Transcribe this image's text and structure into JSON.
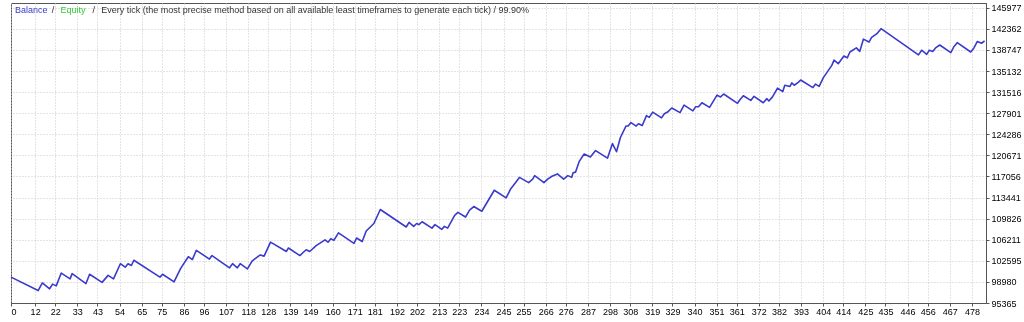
{
  "chart_data": {
    "type": "line",
    "title": "Every tick (the most precise method based on all available least timeframes to generate each tick) / 99.90%",
    "legend": "top left",
    "annotations": [
      "/",
      "/"
    ],
    "grid": true,
    "line_style": "solid",
    "xlim": [
      0,
      485
    ],
    "ylim": [
      95365,
      146800
    ],
    "xticks": [
      0,
      12,
      22,
      33,
      43,
      54,
      65,
      75,
      86,
      96,
      107,
      118,
      128,
      139,
      149,
      160,
      171,
      181,
      192,
      202,
      213,
      223,
      234,
      245,
      255,
      266,
      276,
      287,
      298,
      308,
      319,
      329,
      340,
      351,
      361,
      372,
      382,
      393,
      404,
      414,
      425,
      435,
      446,
      456,
      467,
      478
    ],
    "yticks": [
      95365,
      98980,
      102595,
      106211,
      109826,
      113441,
      117056,
      120671,
      124286,
      127901,
      131516,
      135132,
      138747,
      142362,
      145977
    ],
    "x": [
      0,
      13.5,
      15.6,
      19.2,
      20.7,
      22.5,
      25,
      29.4,
      30.4,
      37.3,
      39.1,
      45.3,
      48.3,
      51,
      54.4,
      56.8,
      58.2,
      59.9,
      61.1,
      74.1,
      75.4,
      81.1,
      84.4,
      88.2,
      90.2,
      92.2,
      98.7,
      100,
      108.7,
      110.2,
      112.6,
      114,
      117.6,
      120,
      124,
      125.9,
      129.1,
      137,
      138,
      143.7,
      146.8,
      148.6,
      151.8,
      156.2,
      157.7,
      159.1,
      160.6,
      162.9,
      170.6,
      171.9,
      174.7,
      176.7,
      180.5,
      183.7,
      196.6,
      198,
      200.3,
      201.8,
      202.9,
      204.5,
      209.4,
      210.9,
      214.3,
      215.6,
      217.2,
      220.7,
      222.3,
      226.1,
      228.1,
      230.2,
      234.2,
      240.4,
      246.3,
      248.5,
      249.6,
      252.9,
      257.5,
      259.5,
      260.5,
      265.1,
      267,
      269.1,
      271.8,
      274.9,
      277,
      278.9,
      279.6,
      280.8,
      282.6,
      285.1,
      288.2,
      290.8,
      296.7,
      299.2,
      301.2,
      303.1,
      305.9,
      307,
      308.4,
      311,
      312.1,
      314,
      316.1,
      317.5,
      319.2,
      323.6,
      325,
      326.6,
      328.7,
      332.8,
      334.8,
      339.2,
      340.5,
      342,
      343.7,
      347.5,
      351.2,
      353,
      354.5,
      361.4,
      362.6,
      364.3,
      368,
      369.6,
      374.2,
      376,
      377,
      378.8,
      381.3,
      383.9,
      384.9,
      387.5,
      388.4,
      389.6,
      391.6,
      392.8,
      398.9,
      400.2,
      402,
      404.1,
      408.3,
      409.4,
      411.5,
      414.3,
      416,
      417.3,
      420.5,
      422.2,
      424,
      426.8,
      428.1,
      430.6,
      432.8,
      451.4,
      453,
      455.5,
      456.8,
      458.5,
      459.9,
      462,
      467.5,
      469,
      470.7,
      477.4,
      479,
      480.7,
      482.8,
      484.3
    ],
    "series": [
      {
        "name": "Balance",
        "color": "#3a3acc",
        "values": [
          99800,
          97500,
          98800,
          97800,
          98600,
          98300,
          100500,
          99500,
          100400,
          98700,
          100300,
          98900,
          100100,
          99500,
          102100,
          101500,
          102100,
          101800,
          102700,
          99800,
          100300,
          99000,
          101300,
          103300,
          102800,
          104400,
          102900,
          103500,
          101400,
          102100,
          101400,
          102100,
          101200,
          102600,
          103600,
          103400,
          105800,
          104200,
          104800,
          103500,
          104500,
          104200,
          105200,
          106200,
          105800,
          106400,
          106100,
          107400,
          105600,
          106500,
          105900,
          107700,
          109000,
          111400,
          108400,
          109200,
          108500,
          109000,
          108800,
          109300,
          108200,
          108800,
          108000,
          108500,
          108200,
          110400,
          110900,
          110100,
          111300,
          111900,
          111100,
          114700,
          113400,
          114900,
          115400,
          116900,
          116000,
          116600,
          117200,
          116000,
          116600,
          117100,
          117500,
          116600,
          117200,
          116900,
          117700,
          117800,
          119600,
          120900,
          120400,
          121500,
          120200,
          122700,
          121300,
          123700,
          125700,
          125700,
          126300,
          125700,
          126100,
          125800,
          127500,
          127200,
          128100,
          127100,
          127800,
          128100,
          128800,
          128000,
          129300,
          128300,
          129000,
          129000,
          129700,
          128900,
          131000,
          130700,
          131200,
          129600,
          130200,
          130900,
          130100,
          130800,
          129700,
          130400,
          130000,
          130700,
          132200,
          131600,
          132700,
          132500,
          133100,
          132700,
          133200,
          133600,
          132300,
          132900,
          132500,
          134000,
          136100,
          137000,
          136400,
          137700,
          137400,
          138400,
          139100,
          138500,
          140600,
          140100,
          140900,
          141500,
          142400,
          137900,
          138700,
          138000,
          138700,
          138500,
          139100,
          139600,
          138300,
          139300,
          140000,
          138400,
          139100,
          140200,
          139900,
          140300
        ]
      },
      {
        "name": "Equity",
        "color": "#33cc33",
        "values": [
          null,
          null,
          null,
          null,
          null,
          null,
          null,
          null,
          null,
          null,
          null,
          null,
          null,
          null,
          null,
          null,
          null,
          null,
          null,
          null,
          null,
          null,
          null,
          null,
          null,
          null,
          null,
          null,
          null,
          null,
          null,
          null,
          null,
          null,
          null,
          null,
          null,
          null,
          null,
          null,
          null,
          null,
          null,
          null,
          null,
          null,
          null,
          null,
          null,
          null,
          null,
          null,
          null,
          null,
          null,
          null,
          null,
          null,
          null,
          null,
          null,
          null,
          null,
          null,
          null,
          null,
          null,
          null,
          null,
          null,
          null,
          null,
          null,
          null,
          null,
          null,
          null,
          null,
          null,
          null,
          null,
          null,
          null,
          null,
          null,
          null,
          null,
          null,
          null,
          null,
          null,
          null,
          null,
          null,
          null,
          null,
          null,
          null,
          null,
          null,
          null,
          null,
          null,
          null,
          null,
          null,
          null,
          null,
          null,
          null,
          null,
          null,
          null,
          null,
          null,
          null,
          null,
          null,
          null,
          null,
          null,
          null,
          null,
          null,
          null,
          null,
          null,
          null,
          null,
          null,
          null,
          null,
          null,
          null,
          null,
          null,
          null,
          null,
          null,
          null,
          null,
          null,
          null,
          null,
          null,
          null,
          null,
          null,
          null,
          null,
          null,
          null,
          null,
          null,
          null,
          null,
          null,
          null,
          null,
          null,
          null,
          null,
          null,
          null,
          null,
          null,
          null,
          null
        ]
      }
    ]
  }
}
